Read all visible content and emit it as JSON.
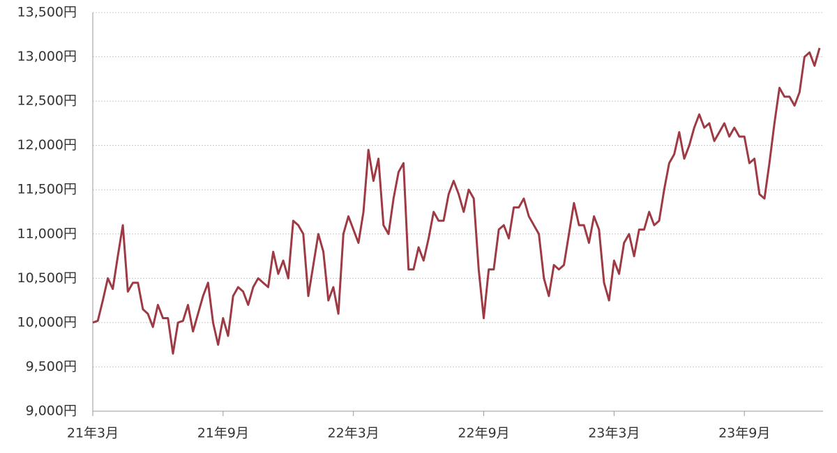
{
  "chart_data": {
    "type": "line",
    "categories": [
      "21年3月",
      null,
      null,
      null,
      null,
      null,
      null,
      null,
      null,
      null,
      null,
      null,
      null,
      null,
      null,
      null,
      null,
      null,
      null,
      null,
      null,
      null,
      null,
      null,
      null,
      null,
      "21年9月",
      null,
      null,
      null,
      null,
      null,
      null,
      null,
      null,
      null,
      null,
      null,
      null,
      null,
      null,
      null,
      null,
      null,
      null,
      null,
      null,
      null,
      null,
      null,
      null,
      null,
      "22年3月",
      null,
      null,
      null,
      null,
      null,
      null,
      null,
      null,
      null,
      null,
      null,
      null,
      null,
      null,
      null,
      null,
      null,
      null,
      null,
      null,
      null,
      null,
      null,
      null,
      null,
      "22年9月",
      null,
      null,
      null,
      null,
      null,
      null,
      null,
      null,
      null,
      null,
      null,
      null,
      null,
      null,
      null,
      null,
      null,
      null,
      null,
      null,
      null,
      null,
      null,
      null,
      null,
      "23年3月",
      null,
      null,
      null,
      null,
      null,
      null,
      null,
      null,
      null,
      null,
      null,
      null,
      null,
      null,
      null,
      null,
      null,
      null,
      null,
      null,
      null,
      null,
      null,
      null,
      null,
      "23年9月",
      null,
      null,
      null,
      null,
      null,
      null,
      null,
      null,
      null,
      null,
      null,
      null,
      null,
      null,
      null
    ],
    "values": [
      10000,
      10020,
      10250,
      10500,
      10380,
      10750,
      11100,
      10350,
      10450,
      10450,
      10150,
      10100,
      9950,
      10200,
      10050,
      10050,
      9650,
      10000,
      10020,
      10200,
      9900,
      10100,
      10300,
      10450,
      10000,
      9750,
      10050,
      9850,
      10300,
      10400,
      10350,
      10200,
      10400,
      10500,
      10450,
      10400,
      10800,
      10550,
      10700,
      10500,
      11150,
      11100,
      11000,
      10300,
      10650,
      11000,
      10800,
      10250,
      10400,
      10100,
      11000,
      11200,
      11050,
      10900,
      11250,
      11950,
      11600,
      11850,
      11100,
      11000,
      11400,
      11700,
      11800,
      10600,
      10600,
      10850,
      10700,
      10950,
      11250,
      11150,
      11150,
      11450,
      11600,
      11450,
      11250,
      11500,
      11400,
      10600,
      10050,
      10600,
      10600,
      11050,
      11100,
      10950,
      11300,
      11300,
      11400,
      11200,
      11100,
      11000,
      10500,
      10300,
      10650,
      10600,
      10650,
      11000,
      11350,
      11100,
      11100,
      10900,
      11200,
      11050,
      10450,
      10250,
      10700,
      10550,
      10900,
      11000,
      10750,
      11050,
      11050,
      11250,
      11100,
      11150,
      11500,
      11800,
      11900,
      12150,
      11850,
      12000,
      12200,
      12350,
      12200,
      12250,
      12050,
      12150,
      12250,
      12100,
      12200,
      12100,
      12100,
      11800,
      11850,
      11450,
      11400,
      11800,
      12250,
      12650,
      12550,
      12550,
      12450,
      12600,
      13000,
      13050,
      12900,
      13100
    ],
    "color": "#9e3a44",
    "ylim": [
      9000,
      13500
    ],
    "yticks": [
      {
        "value": 9000,
        "label": "9,000円"
      },
      {
        "value": 9500,
        "label": "9,500円"
      },
      {
        "value": 10000,
        "label": "10,000円"
      },
      {
        "value": 10500,
        "label": "10,500円"
      },
      {
        "value": 11000,
        "label": "11,000円"
      },
      {
        "value": 11500,
        "label": "11,500円"
      },
      {
        "value": 12000,
        "label": "12,000円"
      },
      {
        "value": 12500,
        "label": "12,500円"
      },
      {
        "value": 13000,
        "label": "13,000円"
      },
      {
        "value": 13500,
        "label": "13,500円"
      }
    ],
    "grid": true
  }
}
